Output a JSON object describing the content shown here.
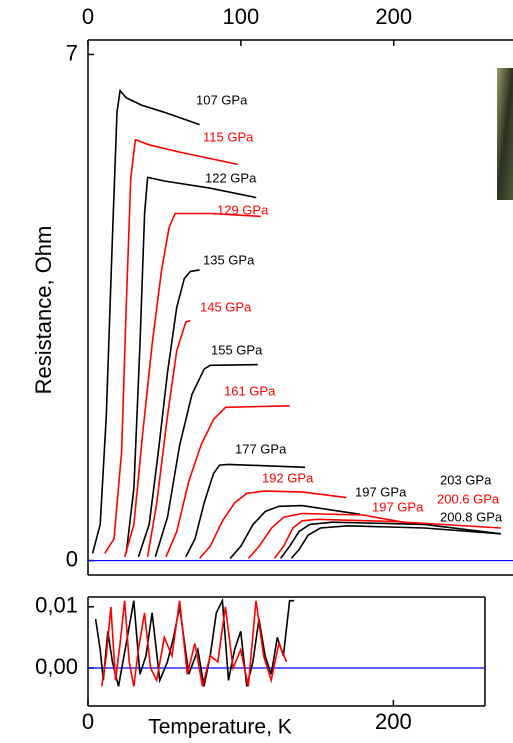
{
  "chart_data": [
    {
      "type": "line",
      "ylabel": "Resistance, Ohm",
      "xlim": [
        0,
        278
      ],
      "xticks": [
        0,
        100,
        200
      ],
      "ylim": [
        -0.2,
        7.2
      ],
      "yticks": [
        0,
        7
      ],
      "reference_line": 0,
      "reference_color": "#0000ff",
      "series": [
        {
          "name": "107 GPa",
          "color": "#000000",
          "x": [
            3,
            8,
            12,
            16,
            19,
            21,
            25,
            35,
            50,
            73
          ],
          "values": [
            0.1,
            0.5,
            2,
            4.5,
            6.2,
            6.5,
            6.4,
            6.3,
            6.2,
            6.03
          ]
        },
        {
          "name": "115 GPa",
          "color": "#ff0000",
          "x": [
            11,
            17,
            22,
            25,
            28,
            31,
            40,
            60,
            98
          ],
          "values": [
            0.1,
            0.3,
            1.5,
            3.5,
            5.3,
            5.82,
            5.75,
            5.65,
            5.48
          ]
        },
        {
          "name": "122 GPa",
          "color": "#000000",
          "x": [
            25,
            30,
            34,
            37,
            39,
            50,
            80,
            110
          ],
          "values": [
            0.1,
            1,
            3,
            4.8,
            5.3,
            5.25,
            5.15,
            5.02
          ]
        },
        {
          "name": "129 GPa",
          "color": "#ff0000",
          "x": [
            24,
            30,
            36,
            42,
            48,
            53,
            57,
            80,
            113
          ],
          "values": [
            0.05,
            0.5,
            1.8,
            3,
            4,
            4.6,
            4.8,
            4.8,
            4.76
          ]
        },
        {
          "name": "135 GPa",
          "color": "#000000",
          "x": [
            33,
            40,
            46,
            52,
            58,
            63,
            67,
            73
          ],
          "values": [
            0.05,
            0.5,
            1.5,
            2.6,
            3.5,
            3.9,
            4.0,
            4.02
          ]
        },
        {
          "name": "145 GPa",
          "color": "#ff0000",
          "x": [
            39,
            45,
            52,
            58,
            64,
            67
          ],
          "values": [
            0.05,
            0.8,
            2,
            2.9,
            3.3,
            3.32
          ]
        },
        {
          "name": "155 GPa",
          "color": "#000000",
          "x": [
            44,
            52,
            60,
            68,
            76,
            80,
            111
          ],
          "values": [
            0.05,
            0.6,
            1.6,
            2.3,
            2.65,
            2.7,
            2.71
          ]
        },
        {
          "name": "161 GPa",
          "color": "#ff0000",
          "x": [
            51,
            58,
            66,
            74,
            82,
            90,
            132
          ],
          "values": [
            0.05,
            0.4,
            1.1,
            1.6,
            1.95,
            2.12,
            2.14
          ]
        },
        {
          "name": "177 GPa",
          "color": "#000000",
          "x": [
            64,
            70,
            76,
            82,
            86,
            92,
            142
          ],
          "values": [
            0.05,
            0.3,
            0.8,
            1.2,
            1.32,
            1.33,
            1.29
          ]
        },
        {
          "name": "192 GPa",
          "color": "#ff0000",
          "x": [
            73,
            80,
            88,
            96,
            104,
            115,
            140,
            169
          ],
          "values": [
            0.03,
            0.2,
            0.55,
            0.8,
            0.93,
            0.96,
            0.95,
            0.87
          ]
        },
        {
          "name": "197 GPa",
          "color": "#000000",
          "x": [
            93,
            100,
            108,
            116,
            125,
            140,
            178
          ],
          "values": [
            0.03,
            0.2,
            0.5,
            0.68,
            0.75,
            0.76,
            0.64
          ]
        },
        {
          "name": "197 GPa",
          "color": "#ff0000",
          "x": [
            105,
            112,
            120,
            128,
            140,
            180,
            214
          ],
          "values": [
            0.03,
            0.2,
            0.45,
            0.6,
            0.65,
            0.63,
            0.5
          ]
        },
        {
          "name": "203 GPa",
          "color": "#000000",
          "x": [
            126,
            132,
            138,
            145,
            160,
            220,
            270
          ],
          "values": [
            0.03,
            0.2,
            0.4,
            0.5,
            0.53,
            0.5,
            0.37
          ]
        },
        {
          "name": "200.6 GPa",
          "color": "#ff0000",
          "x": [
            122,
            128,
            134,
            140,
            150,
            200,
            270
          ],
          "values": [
            0.03,
            0.2,
            0.45,
            0.55,
            0.57,
            0.54,
            0.45
          ]
        },
        {
          "name": "200.8 GPa",
          "color": "#000000",
          "x": [
            133,
            138,
            144,
            152,
            170,
            220,
            270
          ],
          "values": [
            0.03,
            0.15,
            0.35,
            0.45,
            0.48,
            0.45,
            0.37
          ]
        }
      ]
    },
    {
      "type": "line",
      "xlabel": "Temperature, K",
      "xlim": [
        0,
        260
      ],
      "xticks": [
        0,
        200
      ],
      "ylim": [
        -0.0062,
        0.0116
      ],
      "yticks": [
        {
          "value": 0,
          "label": "0,00"
        },
        {
          "value": 0.01,
          "label": "0,01"
        }
      ],
      "reference_line": 0,
      "reference_color": "#0000ff",
      "series": [
        {
          "color": "#000000",
          "x": [
            5,
            8,
            10,
            13,
            16,
            20,
            25,
            30,
            34,
            38,
            42,
            47,
            52,
            56,
            60,
            66,
            72,
            76,
            80,
            84,
            88,
            92,
            96,
            100,
            104,
            108,
            112,
            116,
            120,
            124,
            128,
            132,
            135
          ],
          "values": [
            0.008,
            0.003,
            -0.002,
            0.006,
            0.001,
            -0.003,
            0.004,
            0.011,
            -0.001,
            0.002,
            0.009,
            -0.002,
            0.001,
            0.005,
            0.01,
            -0.001,
            0.003,
            -0.003,
            0.002,
            0.009,
            0.011,
            -0.002,
            0.003,
            0.006,
            -0.003,
            0.001,
            0.008,
            0.002,
            -0.001,
            0.005,
            0.002,
            0.011,
            0.011
          ]
        },
        {
          "color": "#ff0000",
          "x": [
            9,
            12,
            15,
            18,
            21,
            24,
            27,
            30,
            33,
            37,
            41,
            45,
            50,
            55,
            60,
            65,
            70,
            75,
            80,
            85,
            90,
            95,
            100,
            105,
            110,
            115,
            120,
            125,
            130
          ],
          "values": [
            -0.003,
            0.002,
            0.01,
            -0.002,
            0.004,
            0.011,
            0.001,
            -0.003,
            0.003,
            0.009,
            0,
            -0.002,
            0.005,
            0.002,
            0.011,
            -0.001,
            0.004,
            -0.003,
            0.002,
            0.001,
            0.01,
            0,
            0.003,
            -0.003,
            0.011,
            0.002,
            -0.002,
            0.004,
            0.001
          ]
        }
      ]
    }
  ]
}
